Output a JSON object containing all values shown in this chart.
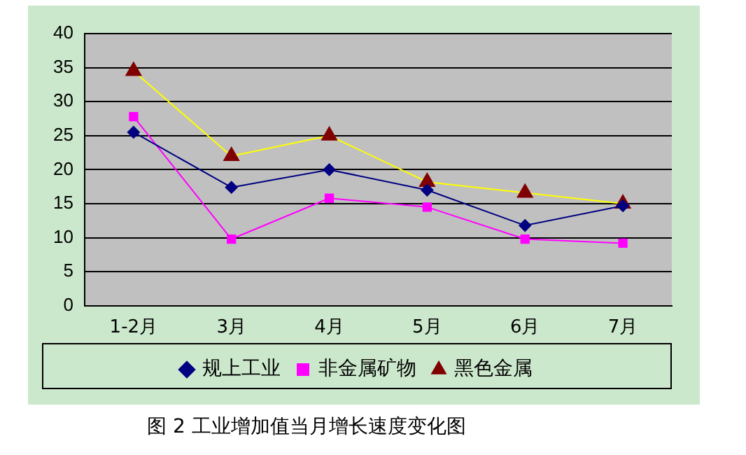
{
  "chart_data": {
    "type": "line",
    "categories": [
      "1-2月",
      "3月",
      "4月",
      "5月",
      "6月",
      "7月"
    ],
    "series": [
      {
        "name": "规上工业",
        "color": "#000080",
        "marker": "diamond",
        "values": [
          25.5,
          17.4,
          20,
          17,
          11.8,
          14.7
        ]
      },
      {
        "name": "非金属矿物",
        "color": "#ff00ff",
        "marker": "square",
        "values": [
          27.8,
          9.8,
          15.8,
          14.5,
          9.8,
          9.2
        ]
      },
      {
        "name": "黑色金属",
        "color": "#ffff00",
        "marker": "triangle",
        "values": [
          34.5,
          22,
          25,
          18.2,
          16.6,
          15
        ]
      }
    ],
    "ylim": [
      0,
      40
    ],
    "yticks": [
      0,
      5,
      10,
      15,
      20,
      25,
      30,
      35,
      40
    ],
    "grid": "y",
    "legend": "bottom",
    "annotations": [
      "图 2 工业增加值当月增长速度变化图"
    ]
  }
}
